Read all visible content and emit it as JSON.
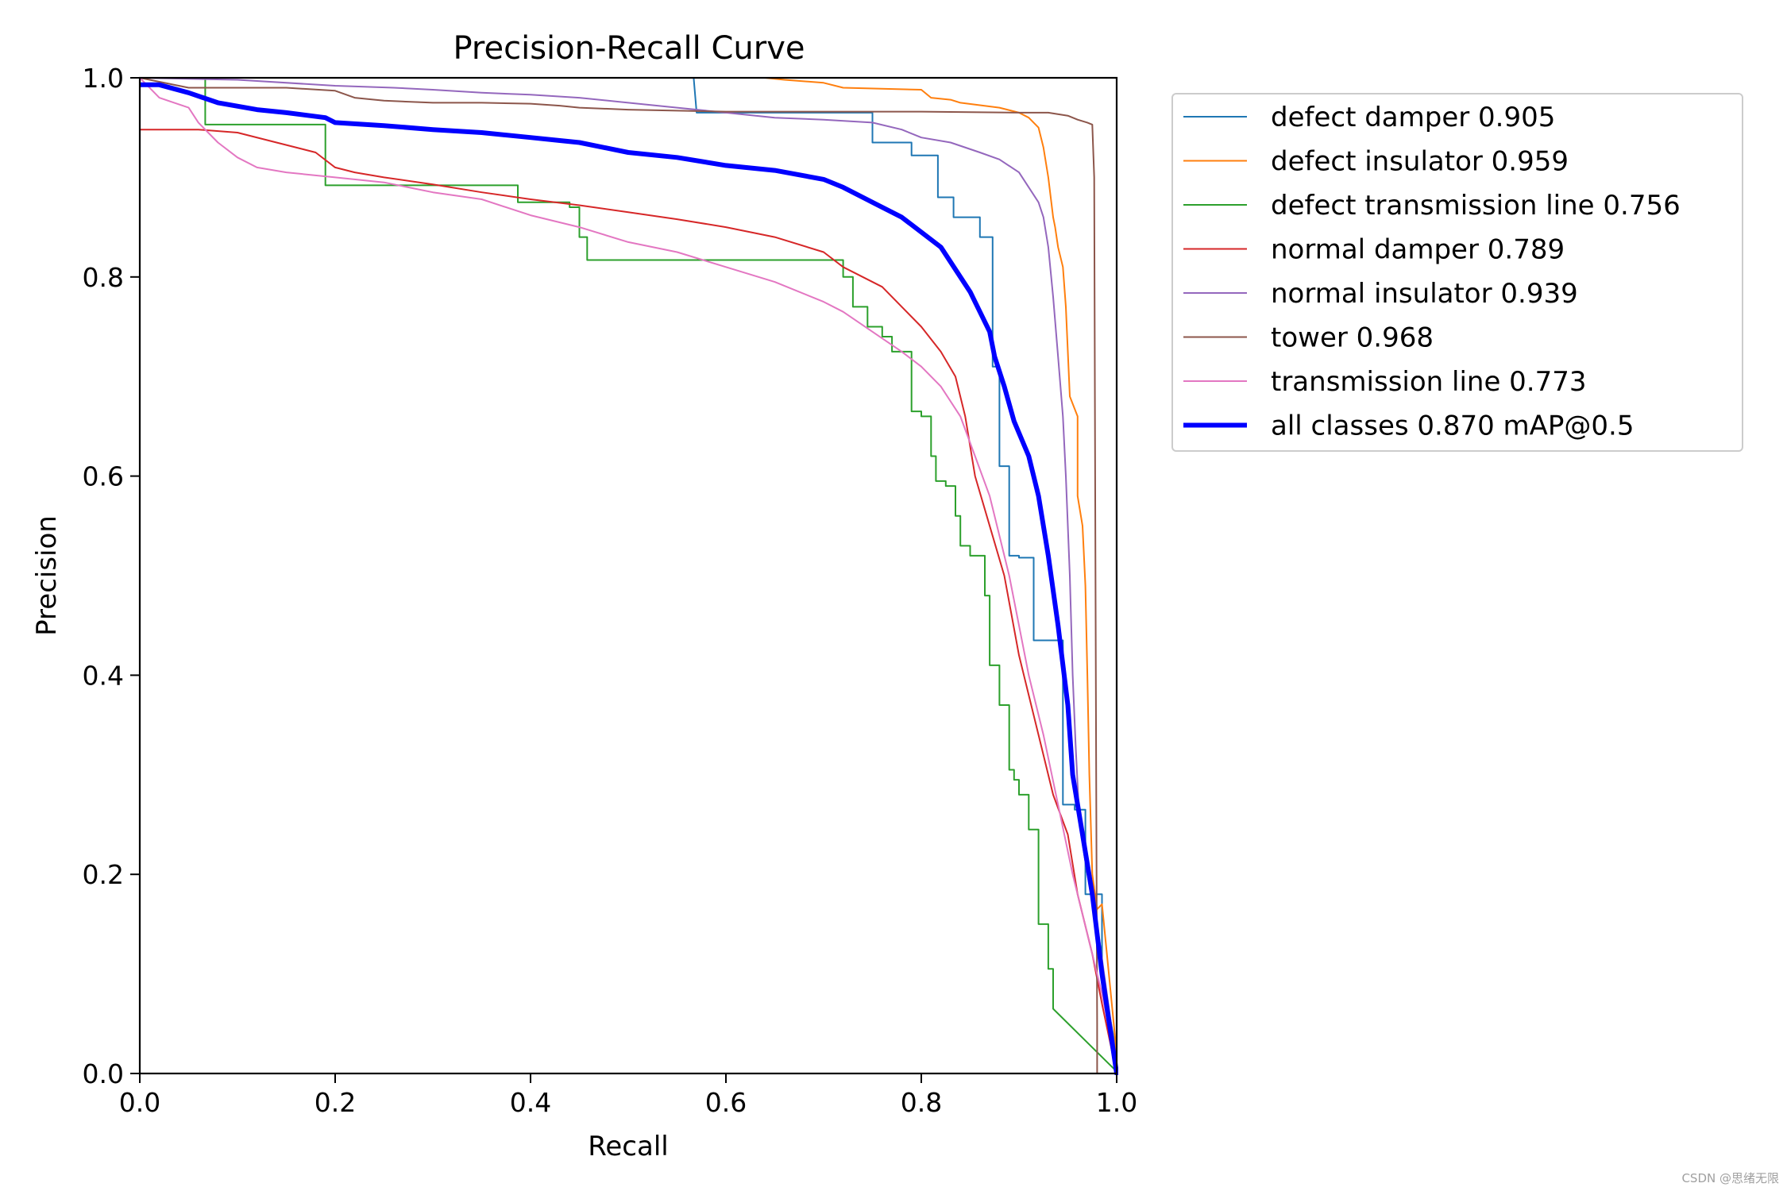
{
  "chart_data": {
    "type": "line",
    "title": "Precision-Recall Curve",
    "xlabel": "Recall",
    "ylabel": "Precision",
    "xlim": [
      0,
      1
    ],
    "ylim": [
      0,
      1
    ],
    "xticks": [
      "0.0",
      "0.2",
      "0.4",
      "0.6",
      "0.8",
      "1.0"
    ],
    "yticks": [
      "0.0",
      "0.2",
      "0.4",
      "0.6",
      "0.8",
      "1.0"
    ],
    "grid": false,
    "legend_position": "outside-right-top",
    "series": [
      {
        "name": "defect damper 0.905",
        "color": "#1f77b4",
        "width": 2,
        "points": [
          [
            0,
            1
          ],
          [
            0.567,
            1
          ],
          [
            0.57,
            0.965
          ],
          [
            0.75,
            0.965
          ],
          [
            0.75,
            0.935
          ],
          [
            0.79,
            0.935
          ],
          [
            0.79,
            0.922
          ],
          [
            0.817,
            0.922
          ],
          [
            0.817,
            0.88
          ],
          [
            0.833,
            0.88
          ],
          [
            0.833,
            0.86
          ],
          [
            0.86,
            0.86
          ],
          [
            0.86,
            0.84
          ],
          [
            0.873,
            0.84
          ],
          [
            0.873,
            0.71
          ],
          [
            0.88,
            0.71
          ],
          [
            0.88,
            0.61
          ],
          [
            0.89,
            0.61
          ],
          [
            0.89,
            0.52
          ],
          [
            0.9,
            0.52
          ],
          [
            0.9,
            0.518
          ],
          [
            0.915,
            0.518
          ],
          [
            0.915,
            0.435
          ],
          [
            0.945,
            0.435
          ],
          [
            0.945,
            0.27
          ],
          [
            0.957,
            0.27
          ],
          [
            0.957,
            0.265
          ],
          [
            0.968,
            0.265
          ],
          [
            0.968,
            0.18
          ],
          [
            0.985,
            0.18
          ],
          [
            0.985,
            0.1
          ],
          [
            1,
            0.02
          ]
        ]
      },
      {
        "name": "defect insulator 0.959",
        "color": "#ff7f0e",
        "width": 2,
        "points": [
          [
            0.54,
            1
          ],
          [
            0.64,
            1
          ],
          [
            0.66,
            0.998
          ],
          [
            0.7,
            0.995
          ],
          [
            0.72,
            0.99
          ],
          [
            0.8,
            0.988
          ],
          [
            0.81,
            0.98
          ],
          [
            0.83,
            0.978
          ],
          [
            0.84,
            0.975
          ],
          [
            0.88,
            0.97
          ],
          [
            0.9,
            0.965
          ],
          [
            0.91,
            0.96
          ],
          [
            0.92,
            0.95
          ],
          [
            0.925,
            0.93
          ],
          [
            0.93,
            0.9
          ],
          [
            0.935,
            0.86
          ],
          [
            0.937,
            0.85
          ],
          [
            0.94,
            0.83
          ],
          [
            0.945,
            0.81
          ],
          [
            0.948,
            0.77
          ],
          [
            0.952,
            0.68
          ],
          [
            0.96,
            0.66
          ],
          [
            0.96,
            0.58
          ],
          [
            0.965,
            0.55
          ],
          [
            0.968,
            0.49
          ],
          [
            0.97,
            0.4
          ],
          [
            0.972,
            0.3
          ],
          [
            0.975,
            0.2
          ],
          [
            0.98,
            0.165
          ],
          [
            0.985,
            0.17
          ],
          [
            0.99,
            0.12
          ],
          [
            1,
            0.02
          ]
        ]
      },
      {
        "name": "defect transmission line 0.756",
        "color": "#2ca02c",
        "width": 2,
        "points": [
          [
            0.06,
            1
          ],
          [
            0.067,
            1
          ],
          [
            0.067,
            0.953
          ],
          [
            0.19,
            0.953
          ],
          [
            0.19,
            0.892
          ],
          [
            0.387,
            0.892
          ],
          [
            0.387,
            0.875
          ],
          [
            0.44,
            0.875
          ],
          [
            0.44,
            0.87
          ],
          [
            0.45,
            0.87
          ],
          [
            0.45,
            0.84
          ],
          [
            0.458,
            0.84
          ],
          [
            0.458,
            0.817
          ],
          [
            0.72,
            0.817
          ],
          [
            0.72,
            0.8
          ],
          [
            0.73,
            0.8
          ],
          [
            0.73,
            0.77
          ],
          [
            0.745,
            0.77
          ],
          [
            0.745,
            0.75
          ],
          [
            0.76,
            0.75
          ],
          [
            0.76,
            0.74
          ],
          [
            0.77,
            0.74
          ],
          [
            0.77,
            0.725
          ],
          [
            0.79,
            0.725
          ],
          [
            0.79,
            0.665
          ],
          [
            0.8,
            0.665
          ],
          [
            0.8,
            0.66
          ],
          [
            0.81,
            0.66
          ],
          [
            0.81,
            0.62
          ],
          [
            0.815,
            0.62
          ],
          [
            0.815,
            0.595
          ],
          [
            0.825,
            0.595
          ],
          [
            0.825,
            0.59
          ],
          [
            0.835,
            0.59
          ],
          [
            0.835,
            0.56
          ],
          [
            0.84,
            0.56
          ],
          [
            0.84,
            0.53
          ],
          [
            0.85,
            0.53
          ],
          [
            0.85,
            0.52
          ],
          [
            0.865,
            0.52
          ],
          [
            0.865,
            0.48
          ],
          [
            0.87,
            0.48
          ],
          [
            0.87,
            0.41
          ],
          [
            0.88,
            0.41
          ],
          [
            0.88,
            0.37
          ],
          [
            0.89,
            0.37
          ],
          [
            0.89,
            0.305
          ],
          [
            0.895,
            0.305
          ],
          [
            0.895,
            0.295
          ],
          [
            0.9,
            0.295
          ],
          [
            0.9,
            0.28
          ],
          [
            0.91,
            0.28
          ],
          [
            0.91,
            0.245
          ],
          [
            0.92,
            0.245
          ],
          [
            0.92,
            0.15
          ],
          [
            0.93,
            0.15
          ],
          [
            0.93,
            0.105
          ],
          [
            0.935,
            0.105
          ],
          [
            0.935,
            0.065
          ],
          [
            1,
            0.002
          ]
        ]
      },
      {
        "name": "normal damper 0.789",
        "color": "#d62728",
        "width": 2,
        "points": [
          [
            0,
            1
          ],
          [
            0,
            0.948
          ],
          [
            0.06,
            0.948
          ],
          [
            0.1,
            0.945
          ],
          [
            0.14,
            0.935
          ],
          [
            0.18,
            0.925
          ],
          [
            0.2,
            0.91
          ],
          [
            0.22,
            0.905
          ],
          [
            0.25,
            0.9
          ],
          [
            0.3,
            0.893
          ],
          [
            0.35,
            0.885
          ],
          [
            0.4,
            0.878
          ],
          [
            0.45,
            0.872
          ],
          [
            0.5,
            0.865
          ],
          [
            0.55,
            0.858
          ],
          [
            0.6,
            0.85
          ],
          [
            0.65,
            0.84
          ],
          [
            0.7,
            0.825
          ],
          [
            0.72,
            0.81
          ],
          [
            0.74,
            0.8
          ],
          [
            0.76,
            0.79
          ],
          [
            0.78,
            0.77
          ],
          [
            0.8,
            0.75
          ],
          [
            0.82,
            0.725
          ],
          [
            0.835,
            0.7
          ],
          [
            0.845,
            0.66
          ],
          [
            0.855,
            0.6
          ],
          [
            0.87,
            0.55
          ],
          [
            0.885,
            0.5
          ],
          [
            0.9,
            0.42
          ],
          [
            0.91,
            0.38
          ],
          [
            0.92,
            0.34
          ],
          [
            0.935,
            0.28
          ],
          [
            0.95,
            0.24
          ],
          [
            0.96,
            0.18
          ],
          [
            0.975,
            0.12
          ],
          [
            0.985,
            0.07
          ],
          [
            1,
            0
          ]
        ]
      },
      {
        "name": "normal insulator 0.939",
        "color": "#9467bd",
        "width": 2,
        "points": [
          [
            0,
            1
          ],
          [
            0.1,
            0.998
          ],
          [
            0.2,
            0.992
          ],
          [
            0.26,
            0.99
          ],
          [
            0.3,
            0.988
          ],
          [
            0.35,
            0.985
          ],
          [
            0.4,
            0.983
          ],
          [
            0.45,
            0.98
          ],
          [
            0.5,
            0.975
          ],
          [
            0.55,
            0.97
          ],
          [
            0.6,
            0.965
          ],
          [
            0.65,
            0.96
          ],
          [
            0.7,
            0.958
          ],
          [
            0.75,
            0.955
          ],
          [
            0.78,
            0.948
          ],
          [
            0.8,
            0.94
          ],
          [
            0.83,
            0.935
          ],
          [
            0.86,
            0.925
          ],
          [
            0.88,
            0.918
          ],
          [
            0.9,
            0.905
          ],
          [
            0.91,
            0.89
          ],
          [
            0.92,
            0.875
          ],
          [
            0.925,
            0.86
          ],
          [
            0.93,
            0.83
          ],
          [
            0.935,
            0.78
          ],
          [
            0.94,
            0.72
          ],
          [
            0.945,
            0.66
          ],
          [
            0.948,
            0.6
          ],
          [
            0.952,
            0.5
          ],
          [
            0.955,
            0.4
          ],
          [
            0.958,
            0.33
          ],
          [
            0.962,
            0.25
          ],
          [
            0.97,
            0.2
          ],
          [
            0.98,
            0.15
          ],
          [
            0.99,
            0.08
          ],
          [
            1,
            0.01
          ]
        ]
      },
      {
        "name": "tower 0.968",
        "color": "#8c564b",
        "width": 2,
        "points": [
          [
            0,
            1
          ],
          [
            0.05,
            0.99
          ],
          [
            0.15,
            0.99
          ],
          [
            0.2,
            0.987
          ],
          [
            0.22,
            0.98
          ],
          [
            0.25,
            0.977
          ],
          [
            0.3,
            0.975
          ],
          [
            0.35,
            0.975
          ],
          [
            0.4,
            0.974
          ],
          [
            0.43,
            0.972
          ],
          [
            0.45,
            0.97
          ],
          [
            0.5,
            0.968
          ],
          [
            0.55,
            0.967
          ],
          [
            0.6,
            0.966
          ],
          [
            0.7,
            0.966
          ],
          [
            0.8,
            0.966
          ],
          [
            0.9,
            0.965
          ],
          [
            0.93,
            0.965
          ],
          [
            0.95,
            0.962
          ],
          [
            0.96,
            0.958
          ],
          [
            0.97,
            0.955
          ],
          [
            0.975,
            0.953
          ],
          [
            0.977,
            0.9
          ],
          [
            0.978,
            0.6
          ],
          [
            0.979,
            0.3
          ],
          [
            0.98,
            0.05
          ],
          [
            0.98,
            0
          ]
        ]
      },
      {
        "name": "transmission line 0.773",
        "color": "#e377c2",
        "width": 2,
        "points": [
          [
            0,
            1
          ],
          [
            0.02,
            0.98
          ],
          [
            0.05,
            0.97
          ],
          [
            0.06,
            0.955
          ],
          [
            0.07,
            0.945
          ],
          [
            0.08,
            0.935
          ],
          [
            0.1,
            0.92
          ],
          [
            0.12,
            0.91
          ],
          [
            0.15,
            0.905
          ],
          [
            0.2,
            0.9
          ],
          [
            0.25,
            0.895
          ],
          [
            0.3,
            0.885
          ],
          [
            0.35,
            0.878
          ],
          [
            0.4,
            0.862
          ],
          [
            0.45,
            0.85
          ],
          [
            0.5,
            0.835
          ],
          [
            0.55,
            0.825
          ],
          [
            0.6,
            0.81
          ],
          [
            0.65,
            0.795
          ],
          [
            0.7,
            0.775
          ],
          [
            0.72,
            0.765
          ],
          [
            0.75,
            0.745
          ],
          [
            0.78,
            0.725
          ],
          [
            0.8,
            0.71
          ],
          [
            0.82,
            0.69
          ],
          [
            0.84,
            0.66
          ],
          [
            0.855,
            0.62
          ],
          [
            0.87,
            0.58
          ],
          [
            0.88,
            0.54
          ],
          [
            0.89,
            0.5
          ],
          [
            0.9,
            0.45
          ],
          [
            0.91,
            0.4
          ],
          [
            0.925,
            0.34
          ],
          [
            0.94,
            0.27
          ],
          [
            0.955,
            0.2
          ],
          [
            0.97,
            0.14
          ],
          [
            0.985,
            0.08
          ],
          [
            1,
            0.005
          ]
        ]
      },
      {
        "name": "all classes 0.870 mAP@0.5",
        "color": "#0000ff",
        "width": 6,
        "points": [
          [
            0,
            0.993
          ],
          [
            0.02,
            0.993
          ],
          [
            0.05,
            0.985
          ],
          [
            0.08,
            0.975
          ],
          [
            0.12,
            0.968
          ],
          [
            0.15,
            0.965
          ],
          [
            0.19,
            0.96
          ],
          [
            0.2,
            0.955
          ],
          [
            0.25,
            0.952
          ],
          [
            0.3,
            0.948
          ],
          [
            0.35,
            0.945
          ],
          [
            0.4,
            0.94
          ],
          [
            0.43,
            0.937
          ],
          [
            0.45,
            0.935
          ],
          [
            0.5,
            0.925
          ],
          [
            0.55,
            0.92
          ],
          [
            0.6,
            0.912
          ],
          [
            0.65,
            0.907
          ],
          [
            0.7,
            0.898
          ],
          [
            0.72,
            0.89
          ],
          [
            0.75,
            0.875
          ],
          [
            0.78,
            0.86
          ],
          [
            0.8,
            0.845
          ],
          [
            0.82,
            0.83
          ],
          [
            0.84,
            0.8
          ],
          [
            0.85,
            0.785
          ],
          [
            0.86,
            0.765
          ],
          [
            0.87,
            0.745
          ],
          [
            0.875,
            0.72
          ],
          [
            0.885,
            0.69
          ],
          [
            0.895,
            0.655
          ],
          [
            0.91,
            0.62
          ],
          [
            0.92,
            0.58
          ],
          [
            0.93,
            0.52
          ],
          [
            0.94,
            0.45
          ],
          [
            0.95,
            0.37
          ],
          [
            0.955,
            0.3
          ],
          [
            0.965,
            0.24
          ],
          [
            0.975,
            0.18
          ],
          [
            0.985,
            0.1
          ],
          [
            1,
            0
          ]
        ]
      }
    ]
  },
  "watermark": "CSDN @思绪无限"
}
